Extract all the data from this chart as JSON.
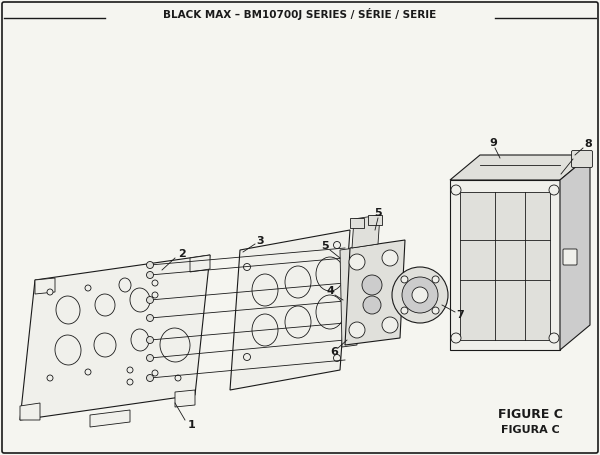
{
  "title": "BLACK MAX – BM10700J SERIES / SÉRIE / SERIE",
  "figure_label": "FIGURE C",
  "figura_label": "FIGURA C",
  "bg_color": "#f5f5f0",
  "line_color": "#1a1a1a",
  "fill_light": "#f0f0eb",
  "fill_mid": "#e0e0db",
  "fill_dark": "#cccccc"
}
